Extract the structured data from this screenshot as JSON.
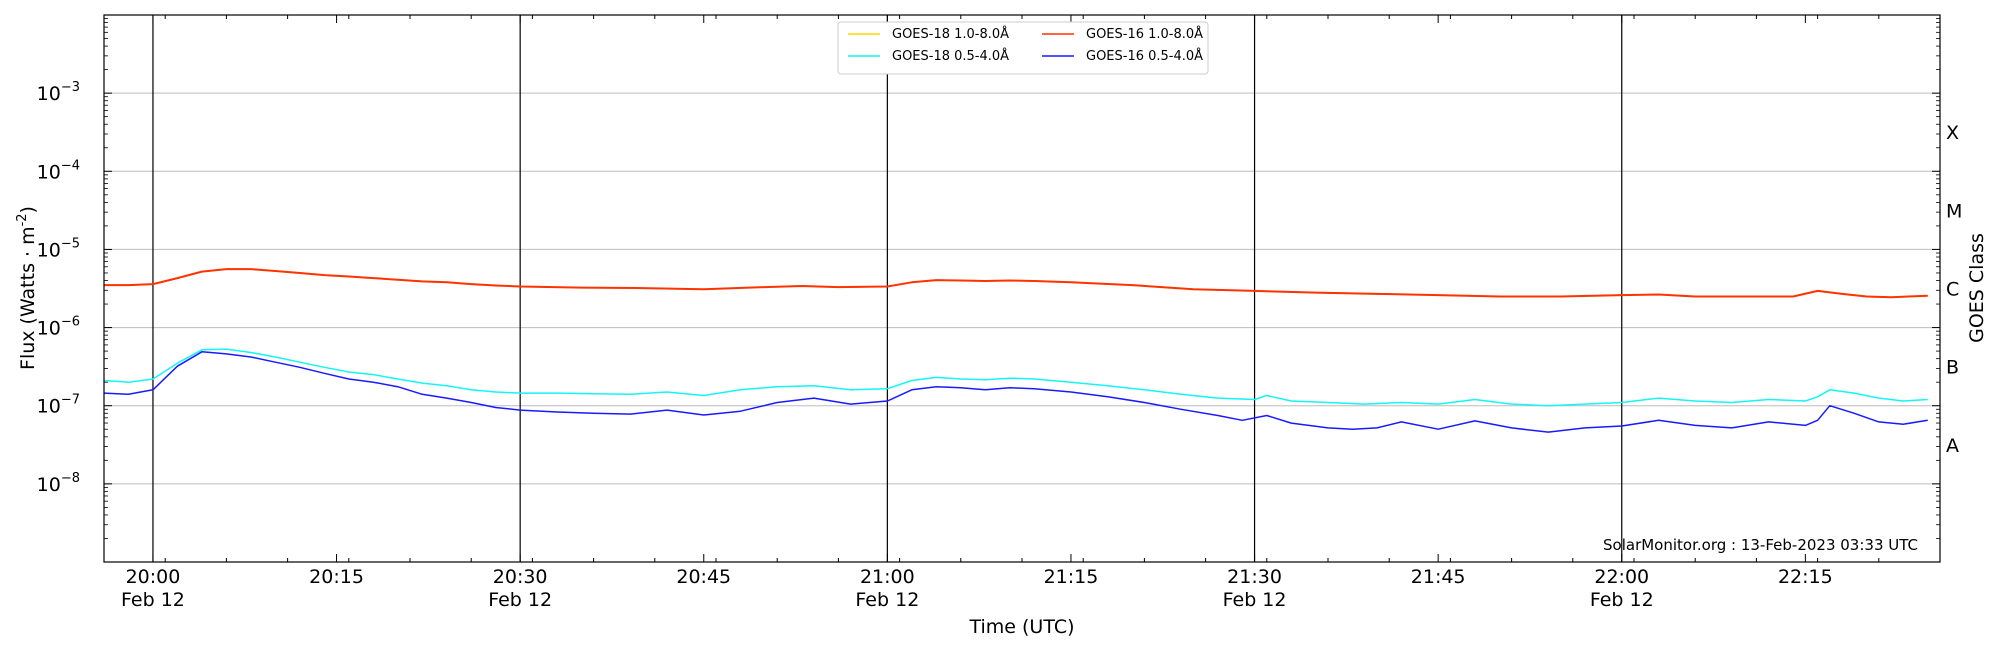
{
  "chart_data": {
    "type": "line",
    "title": "",
    "xlabel": "Time (UTC)",
    "ylabel": "Flux (Watts · m",
    "ylabel_sup": "-2",
    "ylabel_close": ")",
    "y2label": "GOES Class",
    "yscale": "log",
    "ylim": [
      1e-09,
      0.01
    ],
    "xlim": [
      "2023-02-12T19:56:00",
      "2023-02-12T22:26:00"
    ],
    "x_ticks": [
      {
        "time": "2023-02-12T20:00:00",
        "label": "20:00",
        "date": "Feb 12"
      },
      {
        "time": "2023-02-12T20:15:00",
        "label": "20:15",
        "date": ""
      },
      {
        "time": "2023-02-12T20:30:00",
        "label": "20:30",
        "date": "Feb 12"
      },
      {
        "time": "2023-02-12T20:45:00",
        "label": "20:45",
        "date": ""
      },
      {
        "time": "2023-02-12T21:00:00",
        "label": "21:00",
        "date": "Feb 12"
      },
      {
        "time": "2023-02-12T21:15:00",
        "label": "21:15",
        "date": ""
      },
      {
        "time": "2023-02-12T21:30:00",
        "label": "21:30",
        "date": "Feb 12"
      },
      {
        "time": "2023-02-12T21:45:00",
        "label": "21:45",
        "date": ""
      },
      {
        "time": "2023-02-12T22:00:00",
        "label": "22:00",
        "date": "Feb 12"
      },
      {
        "time": "2023-02-12T22:15:00",
        "label": "22:15",
        "date": ""
      }
    ],
    "y_ticks": [
      {
        "value": 1e-08,
        "base": "10",
        "exp": "−8"
      },
      {
        "value": 1e-07,
        "base": "10",
        "exp": "−7"
      },
      {
        "value": 1e-06,
        "base": "10",
        "exp": "−6"
      },
      {
        "value": 1e-05,
        "base": "10",
        "exp": "−5"
      },
      {
        "value": 0.0001,
        "base": "10",
        "exp": "−4"
      },
      {
        "value": 0.001,
        "base": "10",
        "exp": "−3"
      }
    ],
    "goes_classes": [
      {
        "label": "A",
        "value": 3.16e-08
      },
      {
        "label": "B",
        "value": 3.16e-07
      },
      {
        "label": "C",
        "value": 3.16e-06
      },
      {
        "label": "M",
        "value": 3.16e-05
      },
      {
        "label": "X",
        "value": 0.000316
      }
    ],
    "vlines": [
      "2023-02-12T20:00:00",
      "2023-02-12T20:30:00",
      "2023-02-12T21:00:00",
      "2023-02-12T21:30:00",
      "2023-02-12T22:00:00"
    ],
    "grid": "horizontal",
    "legend_position": "top-center",
    "series": [
      {
        "name": "GOES-18 1.0-8.0Å",
        "color": "#ffd800",
        "x": [
          "2023-02-12T19:56:00",
          "2023-02-12T19:58:00",
          "2023-02-12T20:00:00",
          "2023-02-12T20:02:00",
          "2023-02-12T20:04:00",
          "2023-02-12T20:06:00",
          "2023-02-12T20:08:00",
          "2023-02-12T20:10:00",
          "2023-02-12T20:12:00",
          "2023-02-12T20:14:00",
          "2023-02-12T20:16:00",
          "2023-02-12T20:18:00",
          "2023-02-12T20:20:00",
          "2023-02-12T20:22:00",
          "2023-02-12T20:24:00",
          "2023-02-12T20:26:00",
          "2023-02-12T20:28:00",
          "2023-02-12T20:30:00",
          "2023-02-12T20:35:00",
          "2023-02-12T20:40:00",
          "2023-02-12T20:45:00",
          "2023-02-12T20:50:00",
          "2023-02-12T20:53:00",
          "2023-02-12T20:56:00",
          "2023-02-12T21:00:00",
          "2023-02-12T21:02:00",
          "2023-02-12T21:04:00",
          "2023-02-12T21:06:00",
          "2023-02-12T21:08:00",
          "2023-02-12T21:10:00",
          "2023-02-12T21:12:00",
          "2023-02-12T21:15:00",
          "2023-02-12T21:20:00",
          "2023-02-12T21:25:00",
          "2023-02-12T21:30:00",
          "2023-02-12T21:35:00",
          "2023-02-12T21:40:00",
          "2023-02-12T21:45:00",
          "2023-02-12T21:50:00",
          "2023-02-12T21:55:00",
          "2023-02-12T22:00:00",
          "2023-02-12T22:03:00",
          "2023-02-12T22:06:00",
          "2023-02-12T22:10:00",
          "2023-02-12T22:14:00",
          "2023-02-12T22:16:00",
          "2023-02-12T22:18:00",
          "2023-02-12T22:20:00",
          "2023-02-12T22:22:00",
          "2023-02-12T22:25:00"
        ],
        "values": [
          3.5e-06,
          3.5e-06,
          3.6e-06,
          4.3e-06,
          5.2e-06,
          5.6e-06,
          5.6e-06,
          5.3e-06,
          5e-06,
          4.7e-06,
          4.5e-06,
          4.3e-06,
          4.1e-06,
          3.9e-06,
          3.8e-06,
          3.6e-06,
          3.45e-06,
          3.35e-06,
          3.25e-06,
          3.2e-06,
          3.1e-06,
          3.3e-06,
          3.4e-06,
          3.3e-06,
          3.35e-06,
          3.8e-06,
          4.05e-06,
          4e-06,
          3.95e-06,
          4e-06,
          3.95e-06,
          3.8e-06,
          3.5e-06,
          3.1e-06,
          2.95e-06,
          2.8e-06,
          2.7e-06,
          2.6e-06,
          2.5e-06,
          2.5e-06,
          2.6e-06,
          2.65e-06,
          2.5e-06,
          2.5e-06,
          2.5e-06,
          2.95e-06,
          2.7e-06,
          2.5e-06,
          2.45e-06,
          2.55e-06
        ]
      },
      {
        "name": "GOES-18 0.5-4.0Å",
        "color": "#14f5f5",
        "x": [
          "2023-02-12T19:56:00",
          "2023-02-12T19:58:00",
          "2023-02-12T20:00:00",
          "2023-02-12T20:02:00",
          "2023-02-12T20:04:00",
          "2023-02-12T20:06:00",
          "2023-02-12T20:08:00",
          "2023-02-12T20:10:00",
          "2023-02-12T20:12:00",
          "2023-02-12T20:14:00",
          "2023-02-12T20:16:00",
          "2023-02-12T20:18:00",
          "2023-02-12T20:20:00",
          "2023-02-12T20:22:00",
          "2023-02-12T20:24:00",
          "2023-02-12T20:26:00",
          "2023-02-12T20:28:00",
          "2023-02-12T20:30:00",
          "2023-02-12T20:33:00",
          "2023-02-12T20:36:00",
          "2023-02-12T20:39:00",
          "2023-02-12T20:42:00",
          "2023-02-12T20:45:00",
          "2023-02-12T20:48:00",
          "2023-02-12T20:51:00",
          "2023-02-12T20:54:00",
          "2023-02-12T20:57:00",
          "2023-02-12T21:00:00",
          "2023-02-12T21:02:00",
          "2023-02-12T21:04:00",
          "2023-02-12T21:06:00",
          "2023-02-12T21:08:00",
          "2023-02-12T21:10:00",
          "2023-02-12T21:12:00",
          "2023-02-12T21:15:00",
          "2023-02-12T21:18:00",
          "2023-02-12T21:21:00",
          "2023-02-12T21:24:00",
          "2023-02-12T21:27:00",
          "2023-02-12T21:30:00",
          "2023-02-12T21:31:00",
          "2023-02-12T21:33:00",
          "2023-02-12T21:36:00",
          "2023-02-12T21:39:00",
          "2023-02-12T21:42:00",
          "2023-02-12T21:45:00",
          "2023-02-12T21:48:00",
          "2023-02-12T21:51:00",
          "2023-02-12T21:54:00",
          "2023-02-12T21:57:00",
          "2023-02-12T22:00:00",
          "2023-02-12T22:03:00",
          "2023-02-12T22:06:00",
          "2023-02-12T22:09:00",
          "2023-02-12T22:12:00",
          "2023-02-12T22:15:00",
          "2023-02-12T22:16:00",
          "2023-02-12T22:17:00",
          "2023-02-12T22:19:00",
          "2023-02-12T22:21:00",
          "2023-02-12T22:23:00",
          "2023-02-12T22:25:00"
        ],
        "values": [
          2.1e-07,
          2e-07,
          2.2e-07,
          3.5e-07,
          5.2e-07,
          5.3e-07,
          4.8e-07,
          4.2e-07,
          3.6e-07,
          3.1e-07,
          2.7e-07,
          2.5e-07,
          2.2e-07,
          1.95e-07,
          1.8e-07,
          1.6e-07,
          1.5e-07,
          1.45e-07,
          1.45e-07,
          1.42e-07,
          1.4e-07,
          1.5e-07,
          1.35e-07,
          1.6e-07,
          1.75e-07,
          1.8e-07,
          1.6e-07,
          1.65e-07,
          2.1e-07,
          2.3e-07,
          2.2e-07,
          2.15e-07,
          2.25e-07,
          2.2e-07,
          2e-07,
          1.8e-07,
          1.6e-07,
          1.4e-07,
          1.25e-07,
          1.2e-07,
          1.35e-07,
          1.15e-07,
          1.1e-07,
          1.05e-07,
          1.1e-07,
          1.05e-07,
          1.2e-07,
          1.05e-07,
          1e-07,
          1.05e-07,
          1.1e-07,
          1.25e-07,
          1.15e-07,
          1.1e-07,
          1.2e-07,
          1.15e-07,
          1.3e-07,
          1.6e-07,
          1.45e-07,
          1.25e-07,
          1.15e-07,
          1.2e-07
        ]
      },
      {
        "name": "GOES-16 1.0-8.0Å",
        "color": "#ff3300",
        "x": [
          "2023-02-12T19:56:00",
          "2023-02-12T19:58:00",
          "2023-02-12T20:00:00",
          "2023-02-12T20:02:00",
          "2023-02-12T20:04:00",
          "2023-02-12T20:06:00",
          "2023-02-12T20:08:00",
          "2023-02-12T20:10:00",
          "2023-02-12T20:12:00",
          "2023-02-12T20:14:00",
          "2023-02-12T20:16:00",
          "2023-02-12T20:18:00",
          "2023-02-12T20:20:00",
          "2023-02-12T20:22:00",
          "2023-02-12T20:24:00",
          "2023-02-12T20:26:00",
          "2023-02-12T20:28:00",
          "2023-02-12T20:30:00",
          "2023-02-12T20:35:00",
          "2023-02-12T20:40:00",
          "2023-02-12T20:45:00",
          "2023-02-12T20:50:00",
          "2023-02-12T20:53:00",
          "2023-02-12T20:56:00",
          "2023-02-12T21:00:00",
          "2023-02-12T21:02:00",
          "2023-02-12T21:04:00",
          "2023-02-12T21:06:00",
          "2023-02-12T21:08:00",
          "2023-02-12T21:10:00",
          "2023-02-12T21:12:00",
          "2023-02-12T21:15:00",
          "2023-02-12T21:20:00",
          "2023-02-12T21:25:00",
          "2023-02-12T21:30:00",
          "2023-02-12T21:35:00",
          "2023-02-12T21:40:00",
          "2023-02-12T21:45:00",
          "2023-02-12T21:50:00",
          "2023-02-12T21:55:00",
          "2023-02-12T22:00:00",
          "2023-02-12T22:03:00",
          "2023-02-12T22:06:00",
          "2023-02-12T22:10:00",
          "2023-02-12T22:14:00",
          "2023-02-12T22:16:00",
          "2023-02-12T22:18:00",
          "2023-02-12T22:20:00",
          "2023-02-12T22:22:00",
          "2023-02-12T22:25:00"
        ],
        "values": [
          3.5e-06,
          3.5e-06,
          3.6e-06,
          4.3e-06,
          5.2e-06,
          5.6e-06,
          5.6e-06,
          5.3e-06,
          5e-06,
          4.7e-06,
          4.5e-06,
          4.3e-06,
          4.1e-06,
          3.9e-06,
          3.8e-06,
          3.6e-06,
          3.45e-06,
          3.35e-06,
          3.25e-06,
          3.2e-06,
          3.1e-06,
          3.3e-06,
          3.4e-06,
          3.3e-06,
          3.35e-06,
          3.8e-06,
          4.05e-06,
          4e-06,
          3.95e-06,
          4e-06,
          3.95e-06,
          3.8e-06,
          3.5e-06,
          3.1e-06,
          2.95e-06,
          2.8e-06,
          2.7e-06,
          2.6e-06,
          2.5e-06,
          2.5e-06,
          2.6e-06,
          2.65e-06,
          2.5e-06,
          2.5e-06,
          2.5e-06,
          2.95e-06,
          2.7e-06,
          2.5e-06,
          2.45e-06,
          2.55e-06
        ]
      },
      {
        "name": "GOES-16 0.5-4.0Å",
        "color": "#1a1aff",
        "x": [
          "2023-02-12T19:56:00",
          "2023-02-12T19:58:00",
          "2023-02-12T20:00:00",
          "2023-02-12T20:02:00",
          "2023-02-12T20:04:00",
          "2023-02-12T20:06:00",
          "2023-02-12T20:08:00",
          "2023-02-12T20:10:00",
          "2023-02-12T20:12:00",
          "2023-02-12T20:14:00",
          "2023-02-12T20:16:00",
          "2023-02-12T20:18:00",
          "2023-02-12T20:20:00",
          "2023-02-12T20:22:00",
          "2023-02-12T20:24:00",
          "2023-02-12T20:26:00",
          "2023-02-12T20:28:00",
          "2023-02-12T20:30:00",
          "2023-02-12T20:33:00",
          "2023-02-12T20:36:00",
          "2023-02-12T20:39:00",
          "2023-02-12T20:42:00",
          "2023-02-12T20:45:00",
          "2023-02-12T20:48:00",
          "2023-02-12T20:51:00",
          "2023-02-12T20:54:00",
          "2023-02-12T20:57:00",
          "2023-02-12T21:00:00",
          "2023-02-12T21:02:00",
          "2023-02-12T21:04:00",
          "2023-02-12T21:06:00",
          "2023-02-12T21:08:00",
          "2023-02-12T21:10:00",
          "2023-02-12T21:12:00",
          "2023-02-12T21:15:00",
          "2023-02-12T21:18:00",
          "2023-02-12T21:21:00",
          "2023-02-12T21:24:00",
          "2023-02-12T21:27:00",
          "2023-02-12T21:29:00",
          "2023-02-12T21:31:00",
          "2023-02-12T21:33:00",
          "2023-02-12T21:36:00",
          "2023-02-12T21:38:00",
          "2023-02-12T21:40:00",
          "2023-02-12T21:42:00",
          "2023-02-12T21:45:00",
          "2023-02-12T21:48:00",
          "2023-02-12T21:51:00",
          "2023-02-12T21:54:00",
          "2023-02-12T21:57:00",
          "2023-02-12T22:00:00",
          "2023-02-12T22:03:00",
          "2023-02-12T22:06:00",
          "2023-02-12T22:09:00",
          "2023-02-12T22:12:00",
          "2023-02-12T22:15:00",
          "2023-02-12T22:16:00",
          "2023-02-12T22:17:00",
          "2023-02-12T22:19:00",
          "2023-02-12T22:21:00",
          "2023-02-12T22:23:00",
          "2023-02-12T22:25:00"
        ],
        "values": [
          1.45e-07,
          1.4e-07,
          1.6e-07,
          3.2e-07,
          4.9e-07,
          4.6e-07,
          4.2e-07,
          3.6e-07,
          3.1e-07,
          2.6e-07,
          2.2e-07,
          2e-07,
          1.75e-07,
          1.4e-07,
          1.25e-07,
          1.1e-07,
          9.5e-08,
          8.8e-08,
          8.3e-08,
          8e-08,
          7.8e-08,
          8.8e-08,
          7.6e-08,
          8.5e-08,
          1.1e-07,
          1.25e-07,
          1.05e-07,
          1.15e-07,
          1.6e-07,
          1.75e-07,
          1.7e-07,
          1.6e-07,
          1.7e-07,
          1.65e-07,
          1.5e-07,
          1.3e-07,
          1.1e-07,
          9e-08,
          7.5e-08,
          6.5e-08,
          7.5e-08,
          6e-08,
          5.2e-08,
          5e-08,
          5.2e-08,
          6.2e-08,
          5e-08,
          6.4e-08,
          5.2e-08,
          4.6e-08,
          5.2e-08,
          5.5e-08,
          6.5e-08,
          5.6e-08,
          5.2e-08,
          6.2e-08,
          5.6e-08,
          6.5e-08,
          1e-07,
          8e-08,
          6.2e-08,
          5.8e-08,
          6.5e-08
        ]
      }
    ],
    "annotation": "SolarMonitor.org : 13-Feb-2023 03:33 UTC"
  }
}
